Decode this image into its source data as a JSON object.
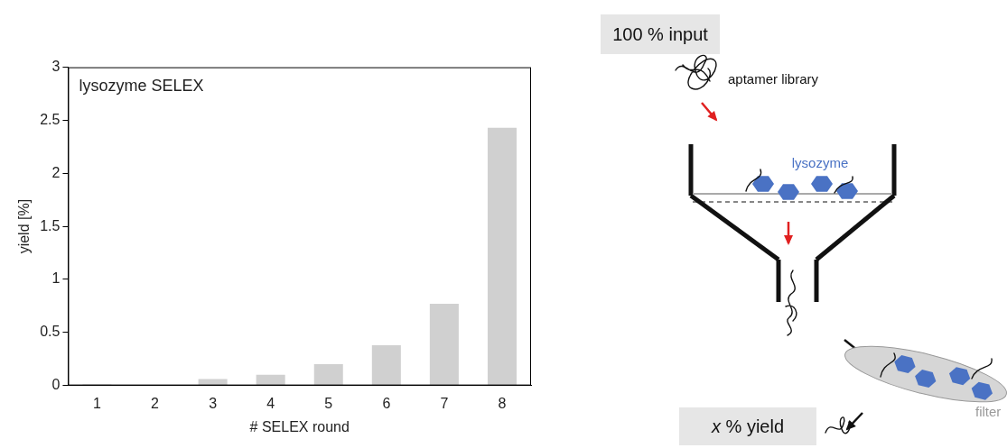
{
  "chart_data": {
    "type": "bar",
    "title": "lysozyme SELEX",
    "x_label": "# SELEX round",
    "y_label": "yield [%]",
    "categories": [
      "1",
      "2",
      "3",
      "4",
      "5",
      "6",
      "7",
      "8"
    ],
    "values": [
      0.01,
      0.005,
      0.06,
      0.1,
      0.2,
      0.38,
      0.77,
      2.43
    ],
    "color": "#d0d0d0",
    "ylim": [
      0,
      3
    ],
    "yticks": [
      0,
      0.5,
      1,
      1.5,
      2,
      2.5,
      3
    ],
    "grid": false
  },
  "diagram": {
    "input_label": "100 % input",
    "library_label": "aptamer library",
    "target_label": "lysozyme",
    "filter_label": "filter",
    "yield_label": "x % yield"
  }
}
